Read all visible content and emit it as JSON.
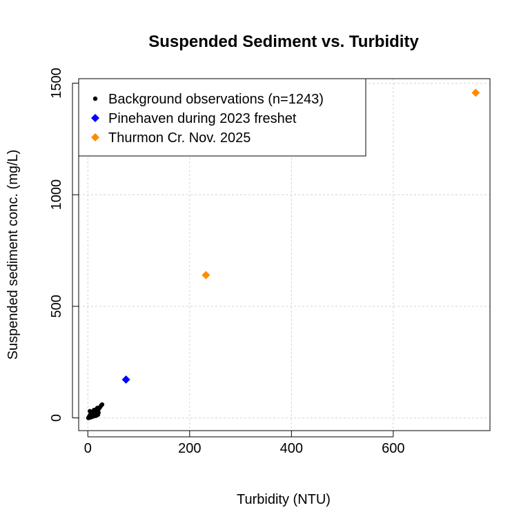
{
  "chart_data": {
    "type": "scatter",
    "title": "Suspended Sediment vs. Turbidity",
    "xlabel": "Turbidity (NTU)",
    "ylabel": "Suspended sediment conc. (mg/L)",
    "xlim": [
      -18,
      790
    ],
    "ylim": [
      -57,
      1520
    ],
    "x_ticks": [
      0,
      200,
      400,
      600
    ],
    "y_ticks": [
      0,
      500,
      1000,
      1500
    ],
    "grid": true,
    "legend_position": "top-left",
    "series": [
      {
        "name": "Background observations (n=1243)",
        "marker": "circle",
        "color": "#000000",
        "points": [
          [
            1,
            0
          ],
          [
            2,
            3
          ],
          [
            3,
            1
          ],
          [
            4,
            5
          ],
          [
            5,
            2
          ],
          [
            3,
            8
          ],
          [
            6,
            10
          ],
          [
            5,
            15
          ],
          [
            7,
            4
          ],
          [
            8,
            12
          ],
          [
            6,
            20
          ],
          [
            9,
            8
          ],
          [
            10,
            14
          ],
          [
            4,
            30
          ],
          [
            7,
            25
          ],
          [
            11,
            18
          ],
          [
            12,
            10
          ],
          [
            13,
            22
          ],
          [
            14,
            16
          ],
          [
            15,
            28
          ],
          [
            12,
            35
          ],
          [
            16,
            20
          ],
          [
            18,
            12
          ],
          [
            20,
            15
          ],
          [
            17,
            40
          ],
          [
            19,
            45
          ],
          [
            22,
            42
          ],
          [
            24,
            48
          ],
          [
            26,
            55
          ],
          [
            28,
            60
          ],
          [
            10,
            6
          ],
          [
            8,
            18
          ],
          [
            15,
            9
          ],
          [
            21,
            24
          ]
        ]
      },
      {
        "name": "Pinehaven during 2023 freshet",
        "marker": "diamond",
        "color": "#0000ff",
        "points": [
          [
            75,
            172
          ]
        ]
      },
      {
        "name": "Thurmon Cr. Nov. 2025",
        "marker": "diamond",
        "color": "#ff8c00",
        "points": [
          [
            232,
            640
          ],
          [
            762,
            1457
          ]
        ]
      }
    ]
  }
}
